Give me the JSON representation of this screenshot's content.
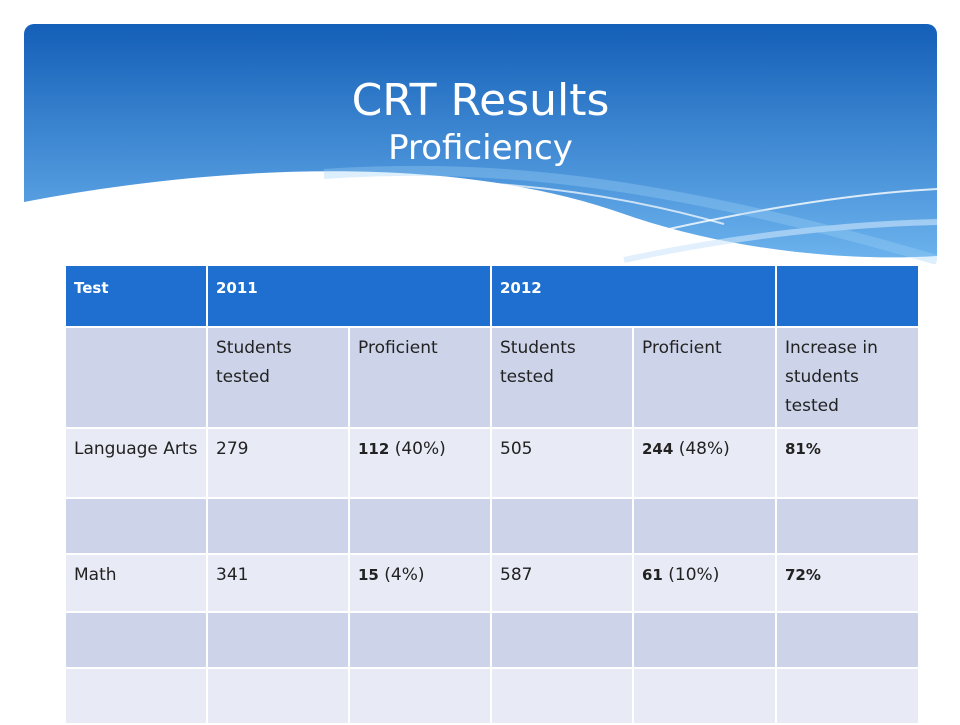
{
  "slide": {
    "title": "CRT Results",
    "subtitle": "Proficiency"
  },
  "colors": {
    "banner_top": "#1a6fc8",
    "banner_bottom": "#5aa8e8",
    "header": "#1f6fd0",
    "row_dark": "#cdd4e9",
    "row_light": "#e8ebf5"
  },
  "table": {
    "header": [
      "Test",
      "2011",
      "2012",
      ""
    ],
    "subheader": [
      "",
      "Students tested",
      "Proficient",
      "Students tested",
      "Proficient",
      "Increase in students tested"
    ],
    "rows": [
      {
        "test": "Language Arts",
        "tested_2011": "279",
        "prof_2011_count": "112",
        "prof_2011_pct": " (40%)",
        "tested_2012": "505",
        "prof_2012_count": "244",
        "prof_2012_pct": " (48%)",
        "increase": "81%"
      },
      {
        "test": "Math",
        "tested_2011": "341",
        "prof_2011_count": "15",
        "prof_2011_pct": " (4%)",
        "tested_2012": "587",
        "prof_2012_count": "61",
        "prof_2012_pct": " (10%)",
        "increase": "72%"
      }
    ]
  }
}
